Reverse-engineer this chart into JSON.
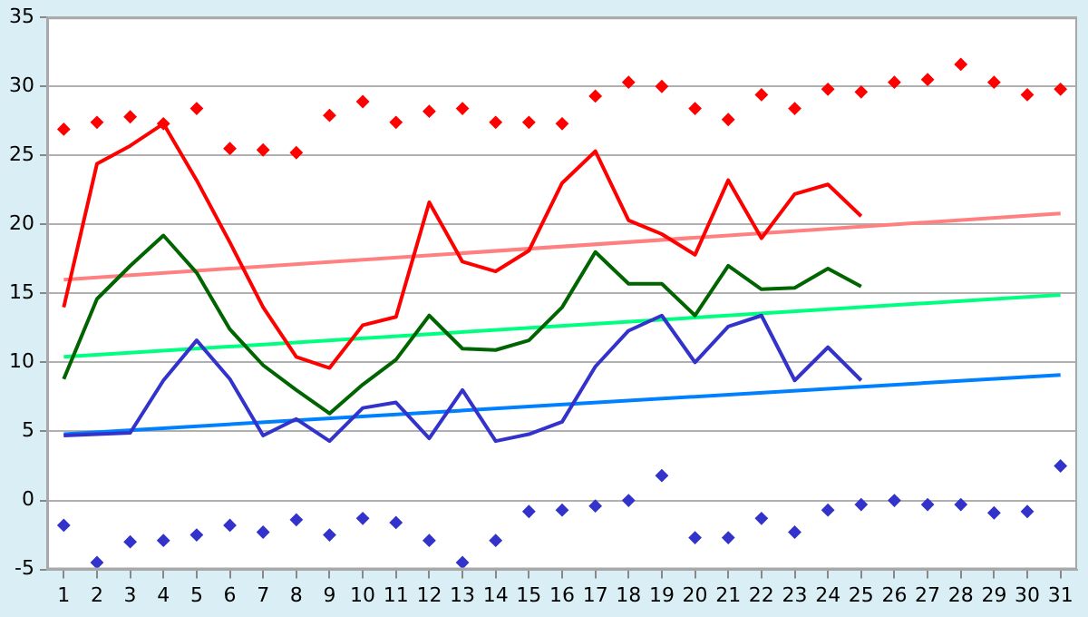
{
  "chart_data": {
    "type": "line",
    "xlim": [
      0.5,
      31.5
    ],
    "xticks": [
      1,
      2,
      3,
      4,
      5,
      6,
      7,
      8,
      9,
      10,
      11,
      12,
      13,
      14,
      15,
      16,
      17,
      18,
      19,
      20,
      21,
      22,
      23,
      24,
      25,
      26,
      27,
      28,
      29,
      30,
      31
    ],
    "ylim": [
      -5,
      35
    ],
    "yticks": [
      -5,
      0,
      5,
      10,
      15,
      20,
      25,
      30,
      35
    ],
    "grid": "y",
    "legend": false,
    "series": [
      {
        "type": "line",
        "color": "#ff0000",
        "marker": "none",
        "x": [
          1,
          2,
          3,
          4,
          5,
          6,
          7,
          8,
          9,
          10,
          11,
          12,
          13,
          14,
          15,
          16,
          17,
          18,
          19,
          20,
          21,
          22,
          23,
          24,
          25
        ],
        "values": [
          14,
          24.4,
          25.7,
          27.3,
          23.2,
          18.7,
          14,
          10.4,
          9.6,
          12.7,
          13.3,
          21.6,
          17.3,
          16.6,
          18.1,
          23,
          25.3,
          20.3,
          19.3,
          17.8,
          23.2,
          19,
          22.2,
          22.9,
          20.6
        ]
      },
      {
        "type": "line",
        "color": "#006400",
        "marker": "none",
        "x": [
          1,
          2,
          3,
          4,
          5,
          6,
          7,
          8,
          9,
          10,
          11,
          12,
          13,
          14,
          15,
          16,
          17,
          18,
          19,
          20,
          21,
          22,
          23,
          24,
          25
        ],
        "values": [
          8.8,
          14.6,
          17,
          19.2,
          16.5,
          12.4,
          9.8,
          8,
          6.3,
          8.4,
          10.2,
          13.4,
          11,
          10.9,
          11.6,
          14,
          18,
          15.7,
          15.7,
          13.4,
          17,
          15.3,
          15.4,
          16.8,
          15.5
        ]
      },
      {
        "type": "line",
        "color": "#3333cc",
        "marker": "none",
        "x": [
          1,
          2,
          3,
          4,
          5,
          6,
          7,
          8,
          9,
          10,
          11,
          12,
          13,
          14,
          15,
          16,
          17,
          18,
          19,
          20,
          21,
          22,
          23,
          24,
          25
        ],
        "values": [
          4.7,
          4.8,
          4.9,
          8.7,
          11.6,
          8.8,
          4.7,
          5.9,
          4.3,
          6.7,
          7.1,
          4.5,
          8,
          4.3,
          4.8,
          5.7,
          9.7,
          12.3,
          13.4,
          10,
          12.6,
          13.4,
          8.7,
          11.1,
          8.7
        ]
      },
      {
        "type": "line",
        "color": "#ff8080",
        "marker": "none",
        "x": [
          1,
          31
        ],
        "values": [
          16,
          20.8
        ]
      },
      {
        "type": "line",
        "color": "#00ff80",
        "marker": "none",
        "x": [
          1,
          31
        ],
        "values": [
          10.4,
          14.9
        ]
      },
      {
        "type": "line",
        "color": "#0080ff",
        "marker": "none",
        "x": [
          1,
          31
        ],
        "values": [
          4.8,
          9.1
        ]
      },
      {
        "type": "scatter",
        "color": "#ff0000",
        "marker": "diamond",
        "x": [
          1,
          2,
          3,
          4,
          5,
          6,
          7,
          8,
          9,
          10,
          11,
          12,
          13,
          14,
          15,
          16,
          17,
          18,
          19,
          20,
          21,
          22,
          23,
          24,
          25,
          26,
          27,
          28,
          29,
          30,
          31
        ],
        "values": [
          26.9,
          27.4,
          27.8,
          27.3,
          28.4,
          25.5,
          25.4,
          25.2,
          27.9,
          28.9,
          27.4,
          28.2,
          28.4,
          27.4,
          27.4,
          27.3,
          29.3,
          30.3,
          30,
          28.4,
          27.6,
          29.4,
          28.4,
          29.8,
          29.6,
          30.3,
          30.5,
          31.6,
          30.3,
          29.4,
          29.8
        ]
      },
      {
        "type": "scatter",
        "color": "#3333cc",
        "marker": "diamond",
        "x": [
          1,
          2,
          3,
          4,
          5,
          6,
          7,
          8,
          9,
          10,
          11,
          12,
          13,
          14,
          15,
          16,
          17,
          18,
          19,
          20,
          21,
          22,
          23,
          24,
          25,
          26,
          27,
          28,
          29,
          30,
          31
        ],
        "values": [
          -1.8,
          -4.5,
          -3,
          -2.9,
          -2.5,
          -1.8,
          -2.3,
          -1.4,
          -2.5,
          -1.3,
          -1.6,
          -2.9,
          -4.5,
          -2.9,
          -0.8,
          -0.7,
          -0.4,
          0,
          1.8,
          -2.7,
          -2.7,
          -1.3,
          -2.3,
          -0.7,
          -0.3,
          0,
          -0.3,
          -0.3,
          -0.9,
          -0.8,
          2.5
        ]
      }
    ]
  }
}
